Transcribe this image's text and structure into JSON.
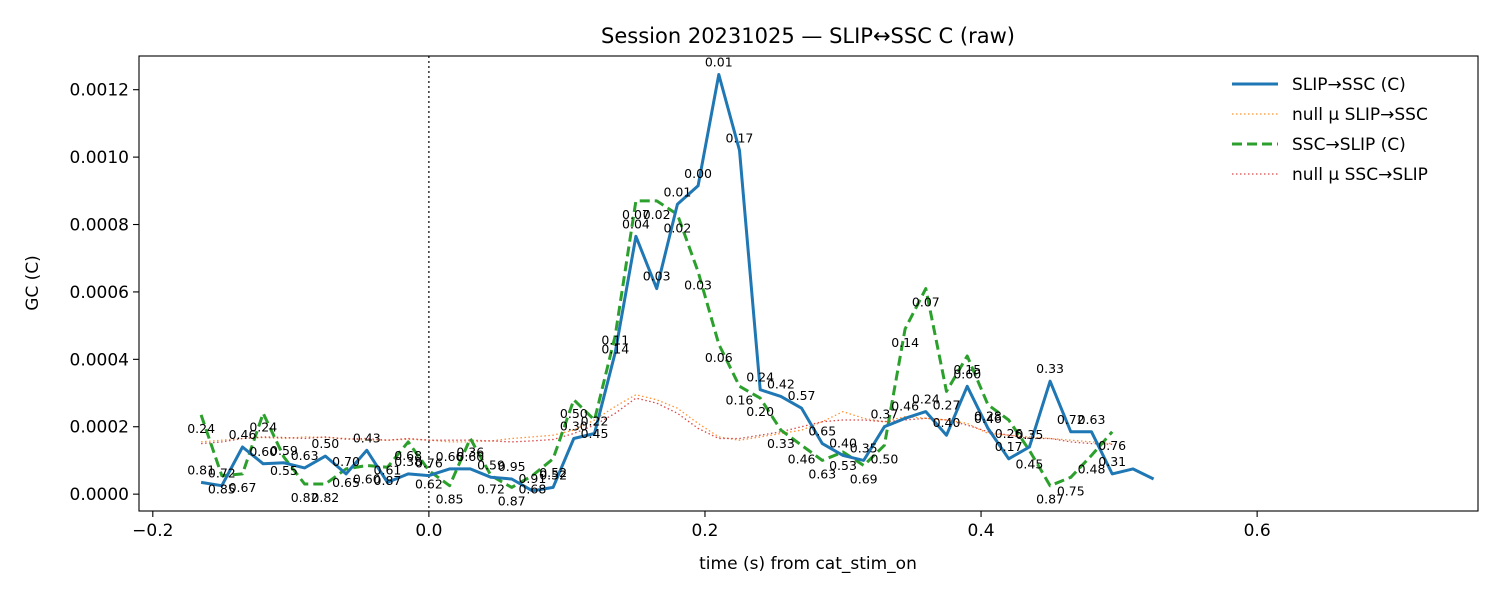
{
  "chart_data": {
    "type": "line",
    "title": "Session 20231025 — SLIP↔SSC C (raw)",
    "xlabel": "time (s) from cat_stim_on",
    "ylabel": "GC (C)",
    "xlim": [
      -0.21,
      0.76
    ],
    "ylim": [
      -5e-05,
      0.0013
    ],
    "xticks": [
      -0.2,
      0.0,
      0.2,
      0.4,
      0.6
    ],
    "xtick_labels": [
      "−0.2",
      "0.0",
      "0.2",
      "0.4",
      "0.6"
    ],
    "yticks": [
      0.0,
      0.0002,
      0.0004,
      0.0006,
      0.0008,
      0.001,
      0.0012
    ],
    "ytick_labels": [
      "0.0000",
      "0.0002",
      "0.0004",
      "0.0006",
      "0.0008",
      "0.0010",
      "0.0012"
    ],
    "event_line_x": 0.0,
    "grid": false,
    "legend_position": "top-right",
    "x": [
      -0.165,
      -0.15,
      -0.135,
      -0.12,
      -0.105,
      -0.09,
      -0.075,
      -0.06,
      -0.045,
      -0.03,
      -0.015,
      0.0,
      0.015,
      0.03,
      0.045,
      0.06,
      0.075,
      0.09,
      0.105,
      0.12,
      0.135,
      0.15,
      0.165,
      0.18,
      0.195,
      0.21,
      0.225,
      0.24,
      0.255,
      0.27,
      0.285,
      0.3,
      0.315,
      0.33,
      0.345,
      0.36,
      0.375,
      0.39,
      0.405,
      0.42,
      0.435,
      0.45,
      0.465,
      0.48,
      0.495,
      0.51,
      0.525,
      0.54,
      0.555,
      0.57,
      0.585,
      0.6,
      0.615,
      0.63,
      0.645,
      0.66,
      0.675,
      0.69,
      0.705
    ],
    "series": [
      {
        "name": "SLIP→SSC (C)",
        "color": "#1f77b4",
        "style": "solid",
        "values": [
          3.5e-05,
          2.5e-05,
          0.00014,
          9e-05,
          9.3e-05,
          7.8e-05,
          0.000113,
          6e-05,
          0.00013,
          3.5e-05,
          6e-05,
          5.5e-05,
          7.5e-05,
          7.5e-05,
          5e-05,
          4.5e-05,
          1e-05,
          2e-05,
          0.000165,
          0.00018,
          0.00042,
          0.000765,
          0.00061,
          0.00086,
          0.000915,
          0.001245,
          0.00102,
          0.00031,
          0.00029,
          0.000255,
          0.00015,
          0.000115,
          0.0001,
          0.0002,
          0.000225,
          0.000245,
          0.000175,
          0.00032,
          0.000195,
          0.000105,
          0.00014,
          0.000335,
          0.000185,
          0.000185,
          6e-05,
          7.5e-05,
          4.5e-05,
          null,
          null,
          null,
          null,
          null,
          null,
          null,
          null,
          null,
          null,
          null,
          null
        ],
        "pvalues": [
          "0.81",
          "0.72",
          "0.46",
          "0.60",
          "0.59",
          "0.63",
          "0.50",
          "0.70",
          "0.43",
          "0.61",
          "0.38",
          "0.76",
          "0.66",
          "0.60",
          "0.59",
          "0.95",
          "0.91",
          "0.52",
          "0.30",
          "0.22",
          "0.11",
          "0.04",
          "0.03",
          "0.01",
          "0.00",
          "0.01",
          "0.17",
          "0.24",
          "0.42",
          "0.57",
          "0.65",
          "0.40",
          "0.35",
          "0.37",
          "0.46",
          "0.24",
          "0.40",
          "0.60",
          "0.28",
          "0.17",
          "0.35",
          "0.33",
          "0.72",
          "0.63",
          "0.31",
          "",
          "",
          "",
          "",
          "",
          "",
          "",
          "",
          "",
          "",
          "",
          "",
          "",
          ""
        ]
      },
      {
        "name": "null μ SLIP→SSC",
        "color": "#ff7f0e",
        "style": "dotted",
        "values": [
          0.000155,
          0.00016,
          0.000165,
          0.000168,
          0.000165,
          0.00017,
          0.000168,
          0.000165,
          0.00016,
          0.00016,
          0.000163,
          0.00016,
          0.000155,
          0.000155,
          0.000158,
          0.000165,
          0.00017,
          0.000175,
          0.00019,
          0.00022,
          0.00026,
          0.000295,
          0.00028,
          0.000255,
          0.00021,
          0.00017,
          0.00016,
          0.00017,
          0.00018,
          0.00019,
          0.000215,
          0.000245,
          0.000225,
          0.000215,
          0.00023,
          0.000225,
          0.00022,
          0.00021,
          0.00018,
          0.000175,
          0.00017,
          0.000165,
          0.00016,
          0.000155,
          0.00015,
          null,
          null,
          null,
          null,
          null,
          null,
          null,
          null,
          null,
          null,
          null,
          null,
          null,
          null
        ]
      },
      {
        "name": "SSC→SLIP (C)",
        "color": "#2ca02c",
        "style": "dashed",
        "values": [
          0.000235,
          5.5e-05,
          6e-05,
          0.00024,
          0.00011,
          3e-05,
          3e-05,
          7.5e-05,
          8.5e-05,
          8e-05,
          0.000155,
          7e-05,
          2.5e-05,
          0.000165,
          5.5e-05,
          2e-05,
          5.5e-05,
          0.000105,
          0.00028,
          0.00022,
          0.00047,
          0.00087,
          0.00087,
          0.00083,
          0.00066,
          0.000445,
          0.00032,
          0.000285,
          0.00019,
          0.000145,
          0.0001,
          0.000125,
          8.5e-05,
          0.000145,
          0.00049,
          0.00061,
          0.000305,
          0.00041,
          0.000265,
          0.00022,
          0.00013,
          2.5e-05,
          5e-05,
          0.000115,
          0.000185,
          null,
          null,
          null,
          null,
          null,
          null,
          null,
          null,
          null,
          null,
          null,
          null,
          null,
          null
        ],
        "pvalues": [
          "0.24",
          "0.85",
          "0.67",
          "0.24",
          "0.55",
          "0.82",
          "0.82",
          "0.65",
          "0.60",
          "0.87",
          "0.68",
          "0.62",
          "0.85",
          "0.36",
          "0.72",
          "0.87",
          "0.68",
          "0.52",
          "0.50",
          "0.45",
          "0.14",
          "0.07",
          "0.02",
          "0.02",
          "0.03",
          "0.06",
          "0.16",
          "0.20",
          "0.33",
          "0.46",
          "0.63",
          "0.53",
          "0.69",
          "0.50",
          "0.14",
          "0.07",
          "0.27",
          "0.15",
          "0.46",
          "0.26",
          "0.45",
          "0.87",
          "0.75",
          "0.48",
          "0.76",
          "",
          "",
          "",
          "",
          "",
          "",
          "",
          "",
          "",
          "",
          "",
          "",
          "",
          ""
        ]
      },
      {
        "name": "null μ SSC→SLIP",
        "color": "#d62728",
        "style": "dotted",
        "values": [
          0.00015,
          0.000155,
          0.000165,
          0.00017,
          0.000168,
          0.000165,
          0.00017,
          0.000163,
          0.000165,
          0.00016,
          0.000165,
          0.00016,
          0.00016,
          0.00016,
          0.000158,
          0.000155,
          0.000158,
          0.000162,
          0.00018,
          0.000205,
          0.00024,
          0.000285,
          0.00027,
          0.00024,
          0.000195,
          0.000165,
          0.000165,
          0.000175,
          0.000185,
          0.0002,
          0.000215,
          0.00022,
          0.00022,
          0.000215,
          0.00022,
          0.000225,
          0.00022,
          0.000205,
          0.000185,
          0.000175,
          0.000165,
          0.000165,
          0.000155,
          0.00015,
          0.000148,
          null,
          null,
          null,
          null,
          null,
          null,
          null,
          null,
          null,
          null,
          null,
          null,
          null,
          null
        ]
      }
    ]
  }
}
